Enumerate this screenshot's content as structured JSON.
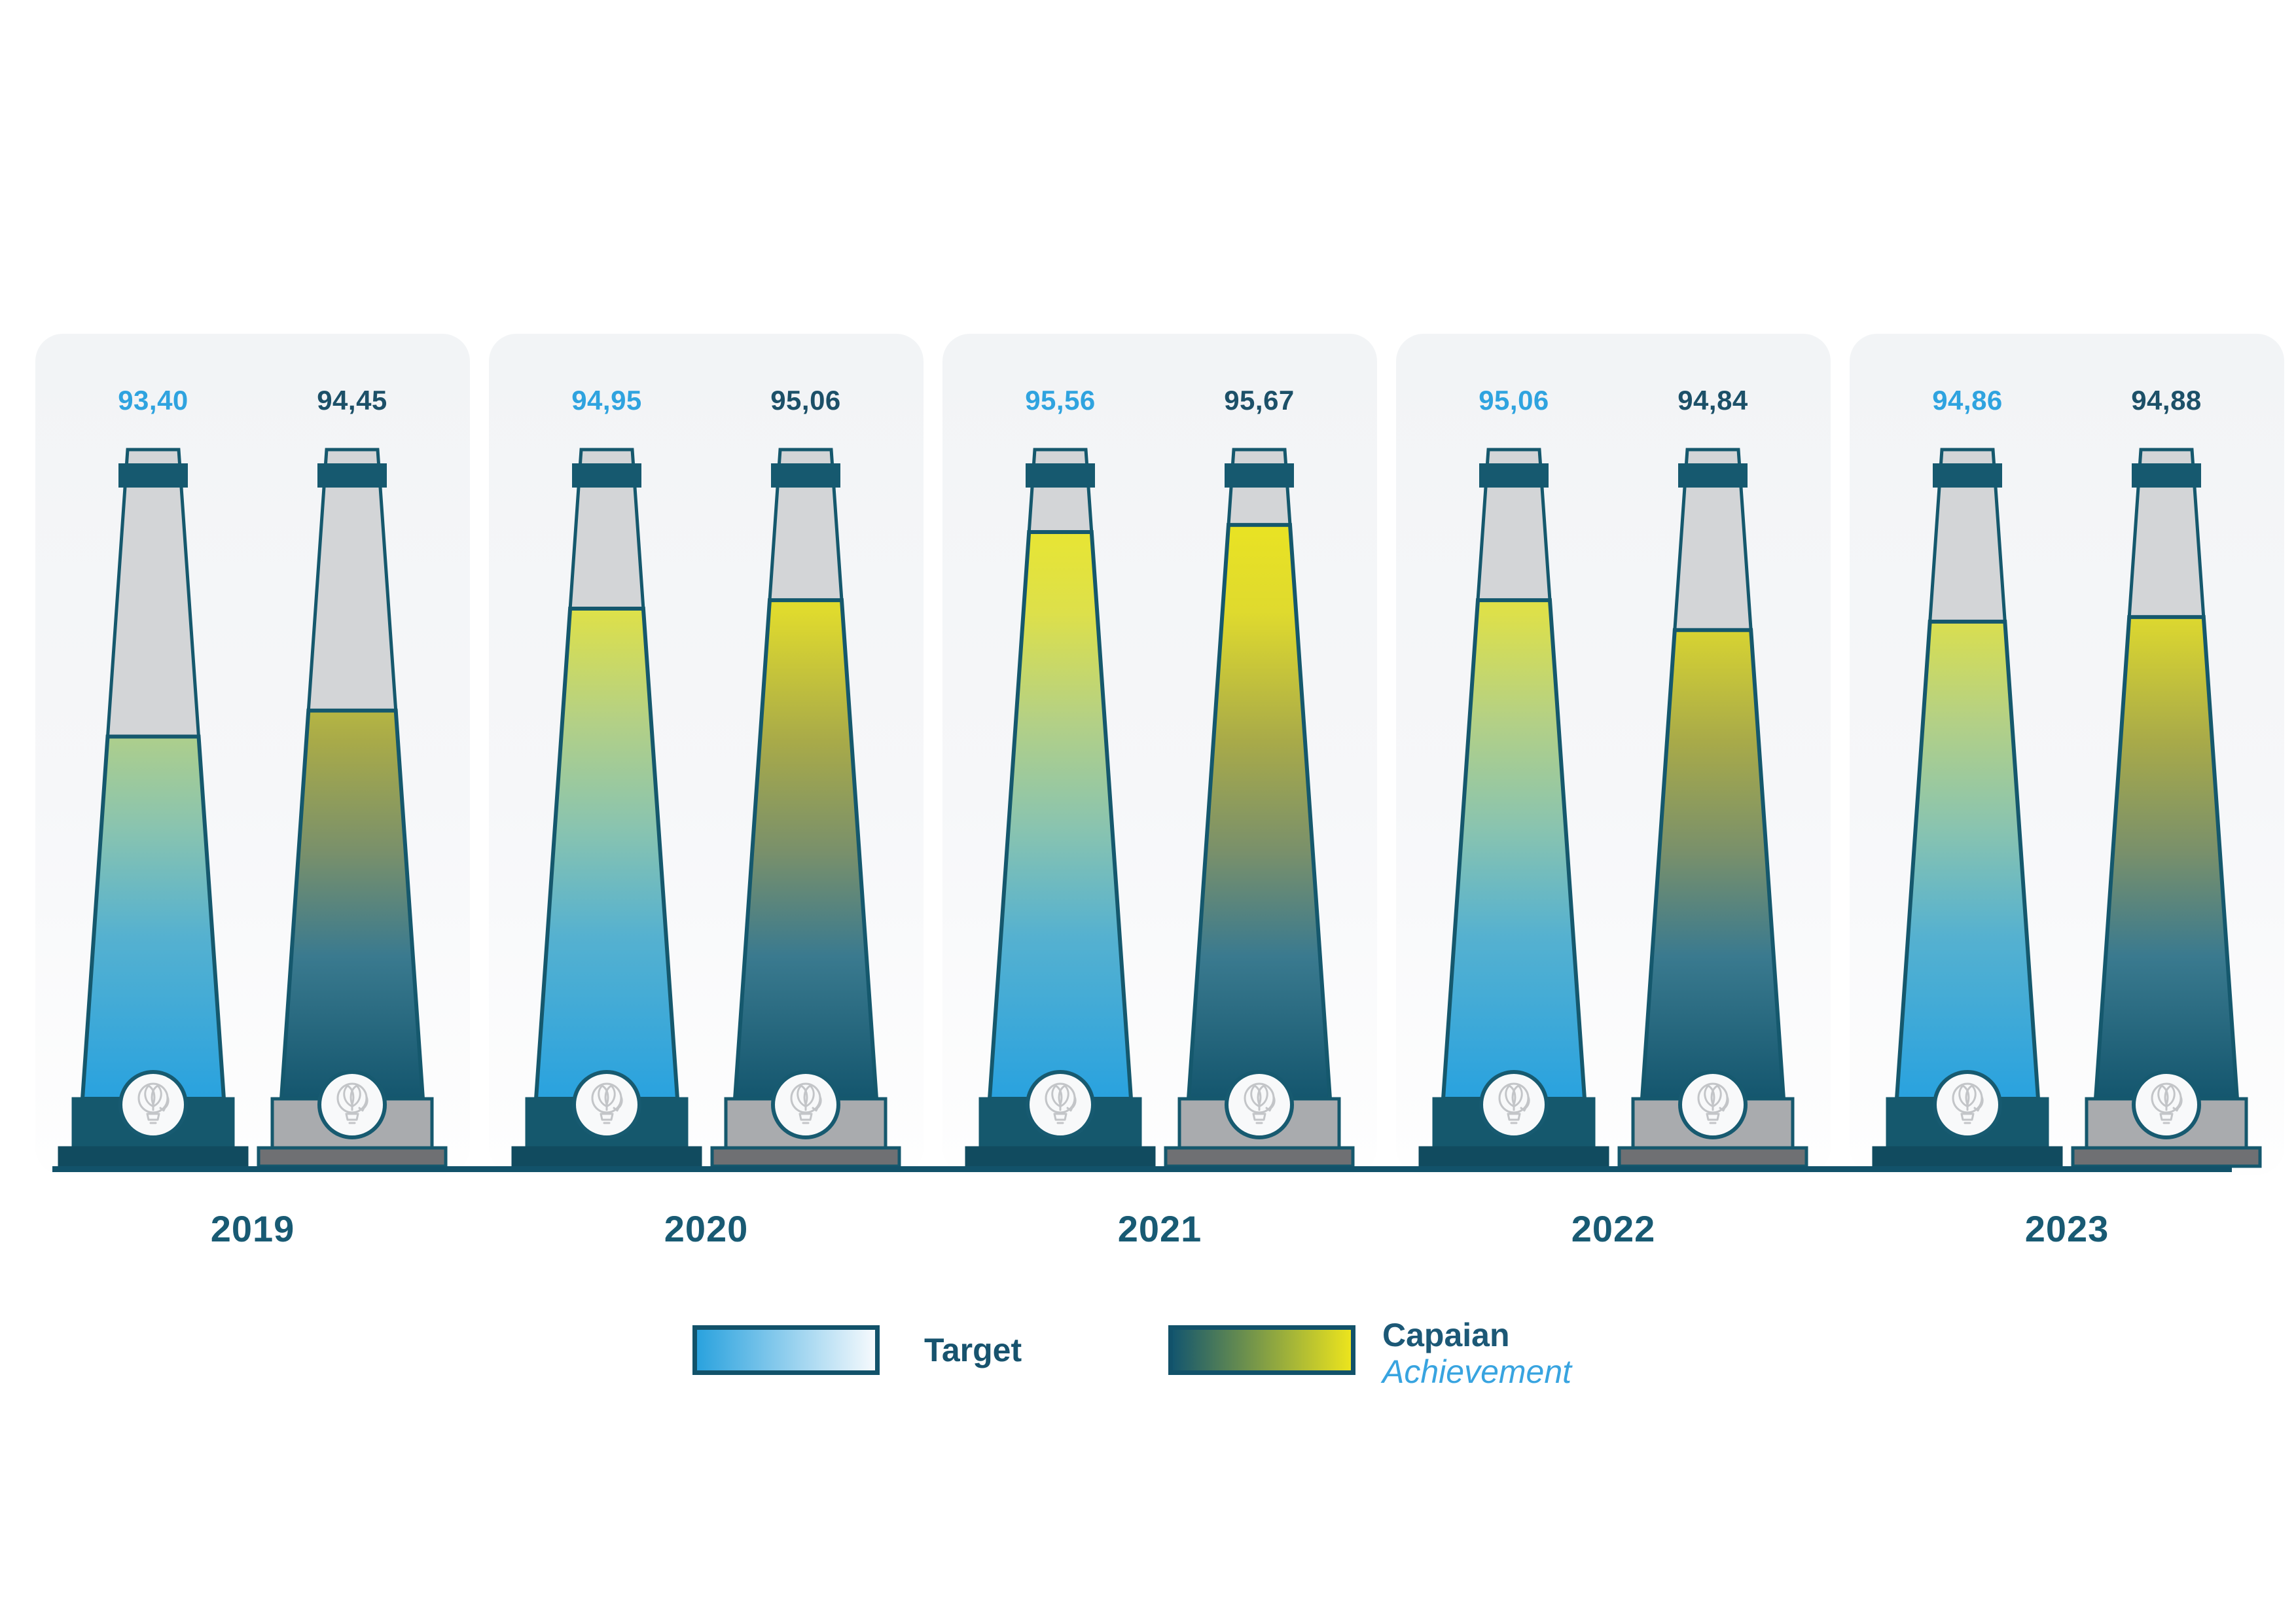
{
  "chart_data": {
    "type": "bar",
    "title": "",
    "categories": [
      "2019",
      "2020",
      "2021",
      "2022",
      "2023"
    ],
    "series": [
      {
        "name": "Target",
        "values": [
          93.4,
          94.95,
          95.56,
          95.06,
          94.86
        ]
      },
      {
        "name": "Capaian Achievement",
        "values": [
          94.45,
          95.06,
          95.67,
          94.84,
          94.88
        ]
      }
    ],
    "value_format": "comma-decimal",
    "legend_position": "bottom",
    "grid": false,
    "axis_ticks_visible": false,
    "groups": [
      {
        "year": "2019",
        "target": {
          "label": "93,40",
          "value": 93.4,
          "fill": 0.558
        },
        "achievement": {
          "label": "94,45",
          "value": 94.45,
          "fill": 0.598
        }
      },
      {
        "year": "2020",
        "target": {
          "label": "94,95",
          "value": 94.95,
          "fill": 0.755
        },
        "achievement": {
          "label": "95,06",
          "value": 95.06,
          "fill": 0.768
        }
      },
      {
        "year": "2021",
        "target": {
          "label": "95,56",
          "value": 95.56,
          "fill": 0.873
        },
        "achievement": {
          "label": "95,67",
          "value": 95.67,
          "fill": 0.884
        }
      },
      {
        "year": "2022",
        "target": {
          "label": "95,06",
          "value": 95.06,
          "fill": 0.768
        },
        "achievement": {
          "label": "94,84",
          "value": 94.84,
          "fill": 0.722
        }
      },
      {
        "year": "2023",
        "target": {
          "label": "94,86",
          "value": 94.86,
          "fill": 0.735
        },
        "achievement": {
          "label": "94,88",
          "value": 94.88,
          "fill": 0.742
        }
      }
    ]
  },
  "legend": {
    "target_label": "Target",
    "achievement_label_line1": "Capaian",
    "achievement_label_line2": "Achievement"
  },
  "icons": {
    "badge_icon": "lightbulb-leaf-icon"
  },
  "colors": {
    "teal": "#15586D",
    "teal_dark": "#114B5F",
    "band": "#16596F",
    "outline": "#175A70",
    "axis": "#12526A",
    "body_gray": "#D3D5D7",
    "target_value_text": "#2FA3DF",
    "achievement_value_text": "#1C5068",
    "year_text": "#185A73",
    "base_gray_light": "#A9ABAE",
    "base_gray_dark": "#6F7073",
    "badge_bg": "#F8F9FA",
    "icon_gray": "#C3C5C8",
    "legend_target_text": "#17536E",
    "legend_achievement_text1": "#1C5876",
    "legend_achievement_text2": "#38A4E0",
    "gradient_target": [
      [
        "0",
        "#F2EA1C"
      ],
      [
        "0.25",
        "#DDE04A"
      ],
      [
        "0.42",
        "#B3D086"
      ],
      [
        "0.58",
        "#8AC4AF"
      ],
      [
        "0.75",
        "#55B1D0"
      ],
      [
        "1",
        "#29A2DF"
      ]
    ],
    "gradient_achievement": [
      [
        "0",
        "#F2EA1A"
      ],
      [
        "0.25",
        "#DFDA2E"
      ],
      [
        "0.45",
        "#A8AA49"
      ],
      [
        "0.62",
        "#79906B"
      ],
      [
        "0.78",
        "#3A7A8F"
      ],
      [
        "1",
        "#14566E"
      ]
    ],
    "legend_target_gradient": [
      "#2AA2DE",
      "#F6FAFD"
    ],
    "legend_achievement_gradient": [
      "#14566E",
      "#ECE41D"
    ]
  }
}
